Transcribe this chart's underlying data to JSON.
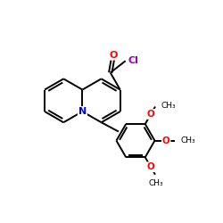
{
  "bg_color": "#ffffff",
  "atom_color_N": "#0000ee",
  "atom_color_O": "#ff0000",
  "atom_color_Cl": "#9900bb",
  "bond_color": "#000000",
  "bond_lw": 1.4,
  "figsize": [
    2.5,
    2.5
  ],
  "dpi": 100,
  "xlim": [
    0,
    10
  ],
  "ylim": [
    0,
    10
  ]
}
